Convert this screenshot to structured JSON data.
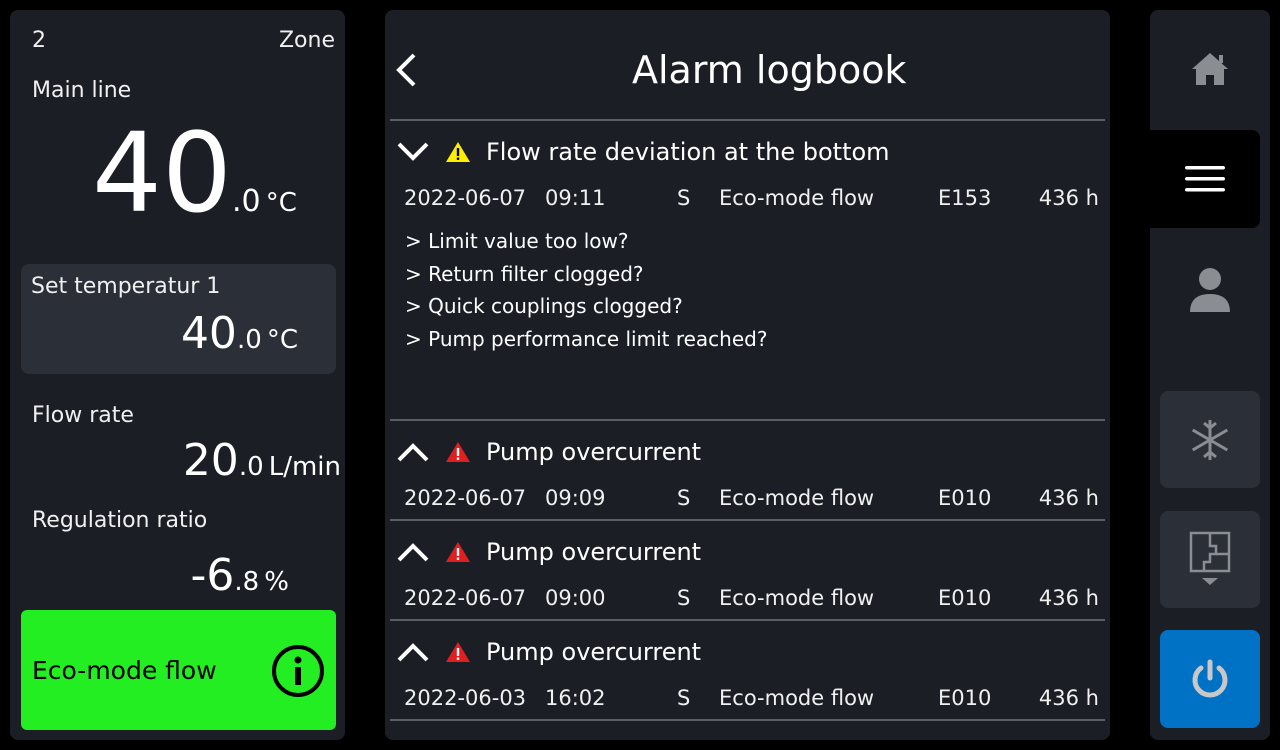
{
  "left": {
    "zone_number": "2",
    "zone_label": "Zone",
    "main_line_label": "Main line",
    "main_line_int": "40",
    "main_line_dec": ".0",
    "main_line_unit": "°C",
    "set_temp_label": "Set temperatur 1",
    "set_temp_int": "40",
    "set_temp_dec": ".0",
    "set_temp_unit": "°C",
    "flow_label": "Flow rate",
    "flow_int": "20",
    "flow_dec": ".0",
    "flow_unit": "L/min",
    "reg_label": "Regulation ratio",
    "reg_int": "-6",
    "reg_dec": ".8",
    "reg_unit": "%",
    "mode_label": "Eco-mode flow",
    "mode_color": "#22ee22"
  },
  "main": {
    "title": "Alarm logbook",
    "alarms": [
      {
        "title": "Flow rate deviation at the bottom",
        "severity": "warning",
        "expanded": true,
        "date": "2022-06-07",
        "time": "09:11",
        "type": "S",
        "mode": "Eco-mode flow",
        "code": "E153",
        "hours": "436 h",
        "hints": [
          "> Limit value too low?",
          "> Return filter clogged?",
          "> Quick couplings clogged?",
          "> Pump performance limit reached?"
        ]
      },
      {
        "title": "Pump overcurrent",
        "severity": "error",
        "expanded": false,
        "date": "2022-06-07",
        "time": "09:09",
        "type": "S",
        "mode": "Eco-mode flow",
        "code": "E010",
        "hours": "436 h"
      },
      {
        "title": "Pump overcurrent",
        "severity": "error",
        "expanded": false,
        "date": "2022-06-07",
        "time": "09:00",
        "type": "S",
        "mode": "Eco-mode flow",
        "code": "E010",
        "hours": "436 h"
      },
      {
        "title": "Pump overcurrent",
        "severity": "error",
        "expanded": false,
        "date": "2022-06-03",
        "time": "16:02",
        "type": "S",
        "mode": "Eco-mode flow",
        "code": "E010",
        "hours": "436 h"
      }
    ]
  },
  "nav": {
    "items": [
      "home-icon",
      "menu-icon",
      "user-icon",
      "snowflake-icon",
      "floorplan-icon",
      "power-icon"
    ],
    "active": "menu-icon",
    "power_color": "#0072c6",
    "warning_color": "#ffee00",
    "error_color": "#e02020"
  }
}
